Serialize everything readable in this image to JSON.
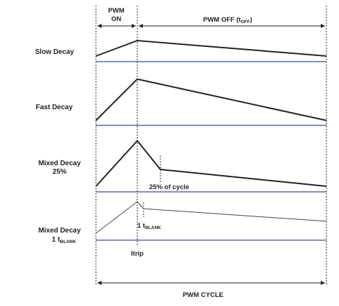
{
  "header": {
    "pwm_on_line1": "PWM",
    "pwm_on_line2": "ON",
    "pwm_off": "PWM OFF (t",
    "pwm_off_sub": "OFF",
    "pwm_off_close": ")"
  },
  "rows": {
    "slow_decay": "Slow Decay",
    "fast_decay": "Fast Decay",
    "mixed_25_line1": "Mixed Decay",
    "mixed_25_line2": "25%",
    "mixed_blank_line1": "Mixed Decay",
    "mixed_blank_line2": "1 t",
    "mixed_blank_sub": "BLANK"
  },
  "annotations": {
    "pct_of_cycle": "25% of cycle",
    "tblank_prefix": "1 t",
    "tblank_sub": "BLANK",
    "itrip": "Itrip"
  },
  "footer": {
    "pwm_cycle": "PWM CYCLE"
  },
  "colors": {
    "baseline": "#3b4a8a",
    "stroke": "#222222"
  }
}
